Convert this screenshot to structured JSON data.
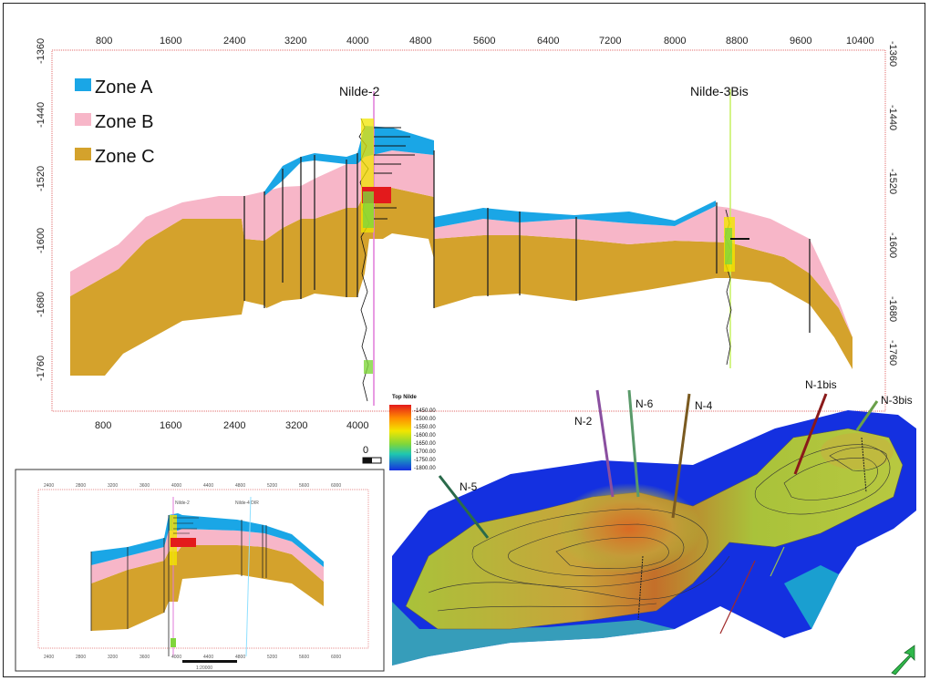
{
  "section": {
    "x_ticks": [
      "800",
      "1600",
      "2400",
      "3200",
      "4000",
      "4800",
      "5600",
      "6400",
      "7200",
      "8000",
      "8800",
      "9600",
      "10400"
    ],
    "x_ticks_bottom": [
      "800",
      "1600",
      "2400",
      "3200",
      "4000"
    ],
    "y_ticks": [
      "-1360",
      "-1440",
      "-1520",
      "-1600",
      "-1680",
      "-1760"
    ],
    "wells": [
      "Nilde-2",
      "Nilde-3Bis"
    ],
    "legend": [
      {
        "label": "Zone A",
        "color": "#1aa6e6"
      },
      {
        "label": "Zone B",
        "color": "#f7b6c8"
      },
      {
        "label": "Zone C",
        "color": "#d4a22c"
      }
    ]
  },
  "colorbar": {
    "title": "Top Nilde",
    "labels": [
      "-1450.00",
      "-1500.00",
      "-1550.00",
      "-1600.00",
      "-1650.00",
      "-1700.00",
      "-1750.00",
      "-1800.00"
    ]
  },
  "scale_label": "0",
  "inset": {
    "well_labels": [
      "Nilde-2",
      "Nilde-4 DIR"
    ],
    "x_ticks": [
      "2400",
      "2800",
      "3200",
      "3600",
      "4000",
      "4400",
      "4800",
      "5200",
      "5600",
      "6000"
    ],
    "scale_text": "1:20000"
  },
  "map3d": {
    "wells": [
      "N-2",
      "N-6",
      "N-4",
      "N-5",
      "N-1bis",
      "N-3bis"
    ]
  }
}
